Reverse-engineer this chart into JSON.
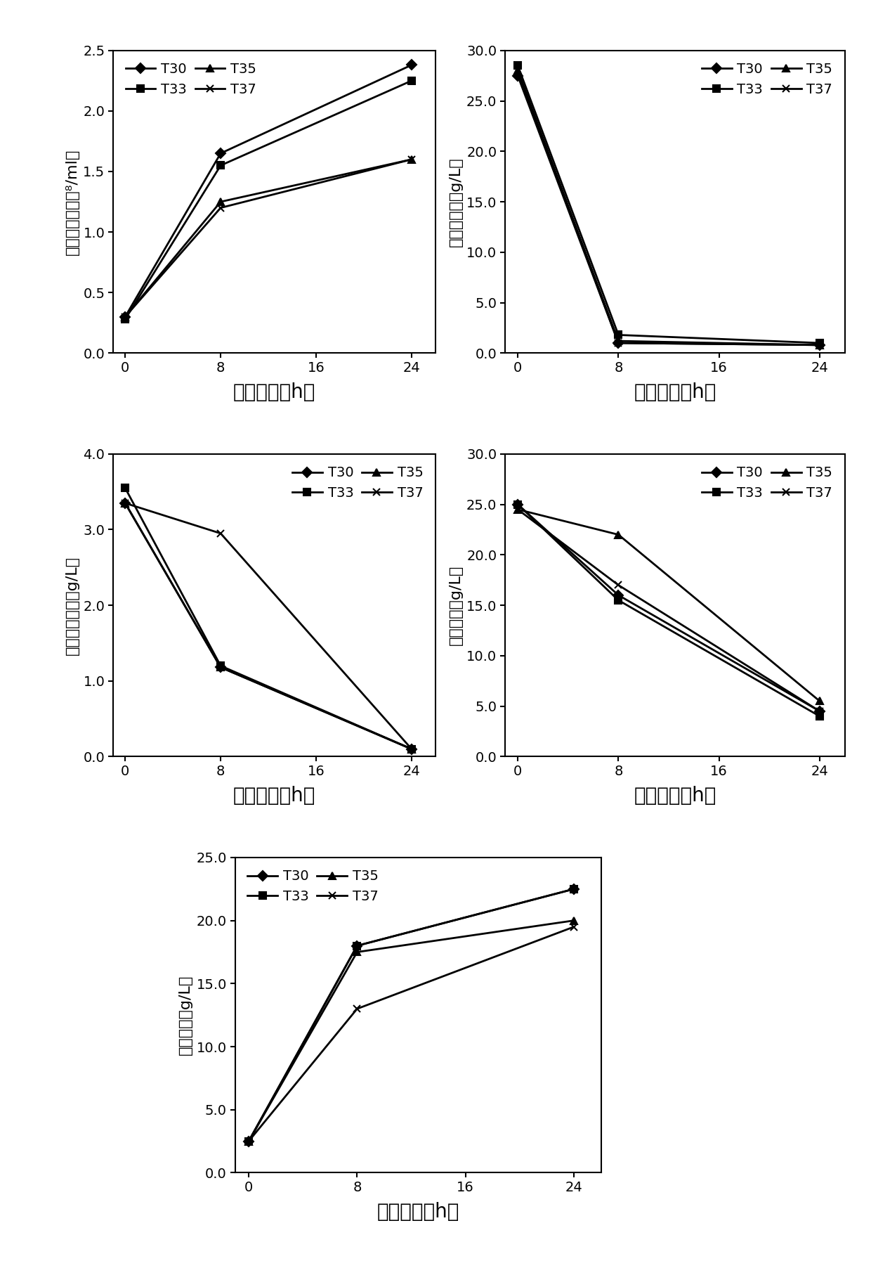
{
  "time": [
    0,
    8,
    24
  ],
  "cell_density": {
    "T30": [
      0.3,
      1.65,
      2.38
    ],
    "T33": [
      0.28,
      1.55,
      2.25
    ],
    "T35": [
      0.3,
      1.25,
      1.6
    ],
    "T37": [
      0.3,
      1.2,
      1.6
    ]
  },
  "cell_ylabel": "细胞浓度（１０⁸/ml）",
  "cell_ylim": [
    0.0,
    2.5
  ],
  "cell_yticks": [
    0.0,
    0.5,
    1.0,
    1.5,
    2.0,
    2.5
  ],
  "glucose": {
    "T30": [
      27.5,
      1.0,
      0.8
    ],
    "T33": [
      28.5,
      1.8,
      1.0
    ],
    "T35": [
      28.0,
      1.2,
      0.8
    ],
    "T37": [
      28.0,
      1.0,
      0.8
    ]
  },
  "glucose_ylabel": "葡萄糖浓度（g/L）",
  "glucose_ylim": [
    0.0,
    30.0
  ],
  "glucose_yticks": [
    0.0,
    5.0,
    10.0,
    15.0,
    20.0,
    25.0,
    30.0
  ],
  "cellobiose": {
    "T30": [
      3.35,
      1.18,
      0.1
    ],
    "T33": [
      3.55,
      1.2,
      0.1
    ],
    "T35": [
      3.35,
      1.18,
      0.1
    ],
    "T37": [
      3.35,
      2.95,
      0.1
    ]
  },
  "cellobiose_ylabel": "纤维二糖浓度（g/L）",
  "cellobiose_ylim": [
    0.0,
    4.0
  ],
  "cellobiose_yticks": [
    0.0,
    1.0,
    2.0,
    3.0,
    4.0
  ],
  "xylose": {
    "T30": [
      25.0,
      16.0,
      4.5
    ],
    "T33": [
      25.0,
      15.5,
      4.0
    ],
    "T35": [
      24.5,
      22.0,
      5.5
    ],
    "T37": [
      24.5,
      17.0,
      4.5
    ]
  },
  "xylose_ylabel": "木糖浓度（g/L）",
  "xylose_ylim": [
    0.0,
    30.0
  ],
  "xylose_yticks": [
    0.0,
    5.0,
    10.0,
    15.0,
    20.0,
    25.0,
    30.0
  ],
  "ethanol": {
    "T30": [
      2.5,
      18.0,
      22.5
    ],
    "T33": [
      2.5,
      18.0,
      22.5
    ],
    "T35": [
      2.5,
      17.5,
      20.0
    ],
    "T37": [
      2.5,
      13.0,
      19.5
    ]
  },
  "ethanol_ylabel": "乙醇浓度（g/L）",
  "ethanol_ylim": [
    0.0,
    25.0
  ],
  "ethanol_yticks": [
    0.0,
    5.0,
    10.0,
    15.0,
    20.0,
    25.0
  ],
  "xlabel": "发酵时间（h）",
  "xticks": [
    0,
    8,
    16,
    24
  ],
  "series": [
    "T30",
    "T33",
    "T35",
    "T37"
  ],
  "markers": [
    "D",
    "s",
    "^",
    "x"
  ],
  "line_color": "#000000",
  "line_width": 2.0,
  "marker_size": 7,
  "legend_fontsize": 14,
  "tick_fontsize": 14,
  "label_fontsize": 16,
  "xlabel_fontsize": 20
}
